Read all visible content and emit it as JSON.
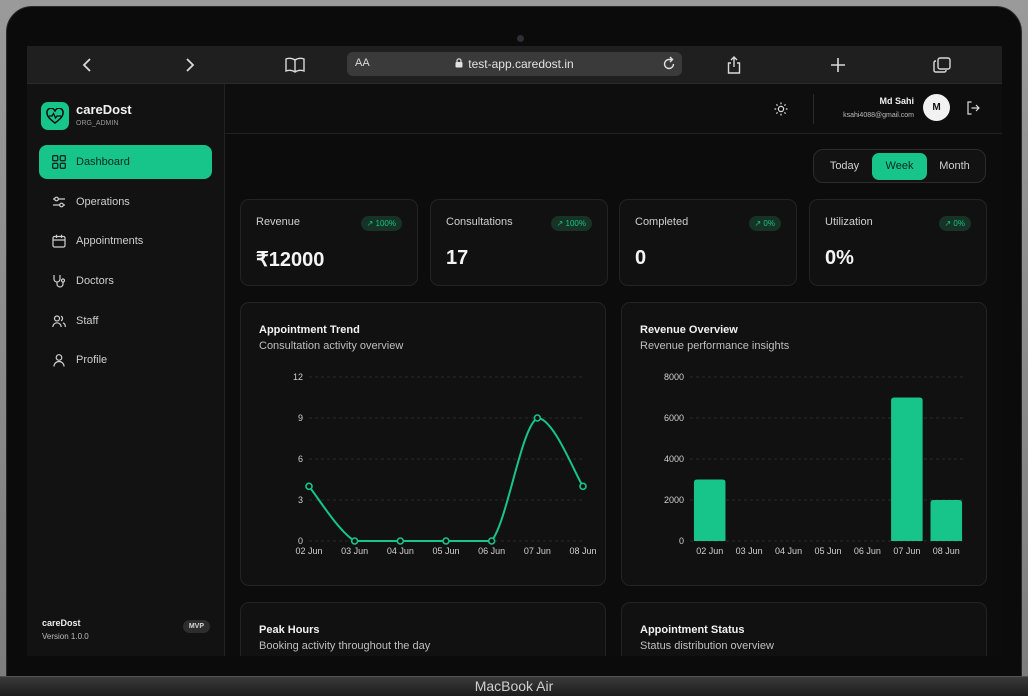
{
  "device": {
    "label": "MacBook Air"
  },
  "browser": {
    "text_size_label": "AA",
    "url": "test-app.caredost.in"
  },
  "sidebar": {
    "brand_name": "careDost",
    "brand_role": "ORG_ADMIN",
    "items": [
      {
        "label": "Dashboard",
        "icon": "grid-icon",
        "active": true
      },
      {
        "label": "Operations",
        "icon": "sliders-icon"
      },
      {
        "label": "Appointments",
        "icon": "calendar-icon"
      },
      {
        "label": "Doctors",
        "icon": "stethoscope-icon"
      },
      {
        "label": "Staff",
        "icon": "users-icon"
      },
      {
        "label": "Profile",
        "icon": "user-icon"
      }
    ],
    "footer_name": "careDost",
    "footer_version": "Version 1.0.0",
    "footer_badge": "MVP"
  },
  "header": {
    "user_name": "Md Sahi",
    "user_email": "ksahi4088@gmail.com",
    "avatar_initial": "M"
  },
  "range_tabs": [
    {
      "label": "Today"
    },
    {
      "label": "Week",
      "active": true
    },
    {
      "label": "Month"
    }
  ],
  "kpis": [
    {
      "label": "Revenue",
      "trend": "↗ 100%",
      "value": "₹12000"
    },
    {
      "label": "Consultations",
      "trend": "↗ 100%",
      "value": "17"
    },
    {
      "label": "Completed",
      "trend": "↗ 0%",
      "value": "0"
    },
    {
      "label": "Utilization",
      "trend": "↗ 0%",
      "value": "0%"
    }
  ],
  "cards": {
    "trend": {
      "title": "Appointment Trend",
      "subtitle": "Consultation activity overview"
    },
    "revenue": {
      "title": "Revenue Overview",
      "subtitle": "Revenue performance insights"
    },
    "peak": {
      "title": "Peak Hours",
      "subtitle": "Booking activity throughout the day"
    },
    "status": {
      "title": "Appointment Status",
      "subtitle": "Status distribution overview"
    }
  },
  "colors": {
    "accent": "#17c48a",
    "background": "#0c0c0c",
    "card": "#111111"
  },
  "chart_data": [
    {
      "type": "line",
      "title": "Appointment Trend",
      "categories": [
        "02 Jun",
        "03 Jun",
        "04 Jun",
        "05 Jun",
        "06 Jun",
        "07 Jun",
        "08 Jun"
      ],
      "values": [
        4,
        0,
        0,
        0,
        0,
        9,
        4
      ],
      "ylim": [
        0,
        12
      ],
      "yticks": [
        0,
        3,
        6,
        9,
        12
      ],
      "grid": true
    },
    {
      "type": "bar",
      "title": "Revenue Overview",
      "categories": [
        "02 Jun",
        "03 Jun",
        "04 Jun",
        "05 Jun",
        "06 Jun",
        "07 Jun",
        "08 Jun"
      ],
      "values": [
        3000,
        0,
        0,
        0,
        0,
        7000,
        2000
      ],
      "ylim": [
        0,
        8000
      ],
      "yticks": [
        0,
        2000,
        4000,
        6000,
        8000
      ],
      "grid": true
    }
  ]
}
